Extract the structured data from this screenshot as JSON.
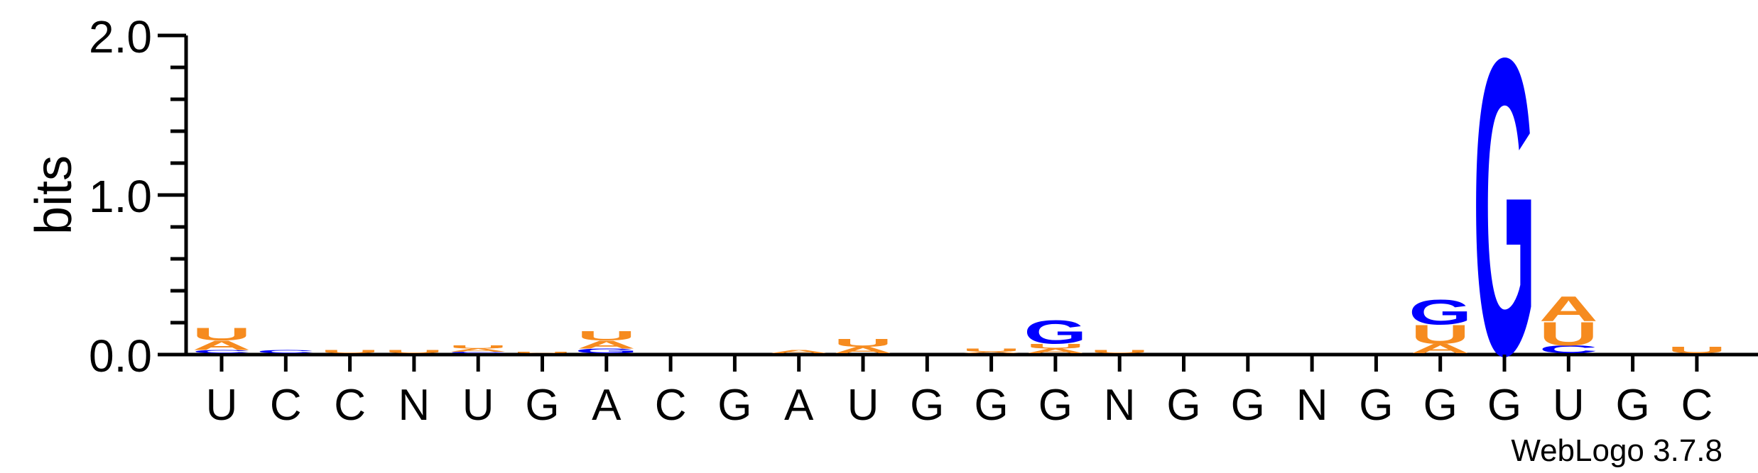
{
  "chart_data": {
    "type": "sequence-logo",
    "ylabel": "bits",
    "ylim": [
      0,
      2.0
    ],
    "y_ticks": [
      {
        "value": 0.0,
        "label": "0.0"
      },
      {
        "value": 1.0,
        "label": "1.0"
      },
      {
        "value": 2.0,
        "label": "2.0"
      }
    ],
    "y_minor_step": 0.2,
    "credit": "WebLogo 3.7.8",
    "base_colors": {
      "A": "#f68b1f",
      "U": "#f68b1f",
      "G": "#0000ff",
      "C": "#0000ff"
    },
    "positions": [
      {
        "label": "U",
        "stack": [
          {
            "base": "C",
            "bits": 0.02
          },
          {
            "base": "A",
            "bits": 0.06
          },
          {
            "base": "U",
            "bits": 0.08
          }
        ]
      },
      {
        "label": "C",
        "stack": [
          {
            "base": "C",
            "bits": 0.02
          }
        ]
      },
      {
        "label": "C",
        "stack": [
          {
            "base": "U",
            "bits": 0.02
          }
        ]
      },
      {
        "label": "N",
        "stack": [
          {
            "base": "U",
            "bits": 0.02
          }
        ]
      },
      {
        "label": "U",
        "stack": [
          {
            "base": "C",
            "bits": 0.01
          },
          {
            "base": "A",
            "bits": 0.02
          },
          {
            "base": "U",
            "bits": 0.02
          }
        ]
      },
      {
        "label": "G",
        "stack": [
          {
            "base": "U",
            "bits": 0.01
          }
        ]
      },
      {
        "label": "A",
        "stack": [
          {
            "base": "G",
            "bits": 0.03
          },
          {
            "base": "A",
            "bits": 0.05
          },
          {
            "base": "U",
            "bits": 0.06
          }
        ]
      },
      {
        "label": "C",
        "stack": []
      },
      {
        "label": "G",
        "stack": []
      },
      {
        "label": "A",
        "stack": [
          {
            "base": "A",
            "bits": 0.02
          }
        ]
      },
      {
        "label": "U",
        "stack": [
          {
            "base": "A",
            "bits": 0.04
          },
          {
            "base": "U",
            "bits": 0.05
          }
        ]
      },
      {
        "label": "G",
        "stack": []
      },
      {
        "label": "G",
        "stack": [
          {
            "base": "A",
            "bits": 0.01
          },
          {
            "base": "U",
            "bits": 0.02
          }
        ]
      },
      {
        "label": "G",
        "stack": [
          {
            "base": "A",
            "bits": 0.03
          },
          {
            "base": "U",
            "bits": 0.03
          },
          {
            "base": "G",
            "bits": 0.15
          }
        ]
      },
      {
        "label": "N",
        "stack": [
          {
            "base": "U",
            "bits": 0.02
          }
        ]
      },
      {
        "label": "G",
        "stack": []
      },
      {
        "label": "G",
        "stack": []
      },
      {
        "label": "N",
        "stack": []
      },
      {
        "label": "G",
        "stack": []
      },
      {
        "label": "G",
        "stack": [
          {
            "base": "A",
            "bits": 0.06
          },
          {
            "base": "U",
            "bits": 0.12
          },
          {
            "base": "G",
            "bits": 0.16
          }
        ]
      },
      {
        "label": "G",
        "stack": [
          {
            "base": "G",
            "bits": 1.9
          }
        ]
      },
      {
        "label": "U",
        "stack": [
          {
            "base": "C",
            "bits": 0.05
          },
          {
            "base": "U",
            "bits": 0.15
          },
          {
            "base": "A",
            "bits": 0.16
          }
        ]
      },
      {
        "label": "G",
        "stack": []
      },
      {
        "label": "C",
        "stack": [
          {
            "base": "U",
            "bits": 0.04
          }
        ]
      }
    ]
  }
}
